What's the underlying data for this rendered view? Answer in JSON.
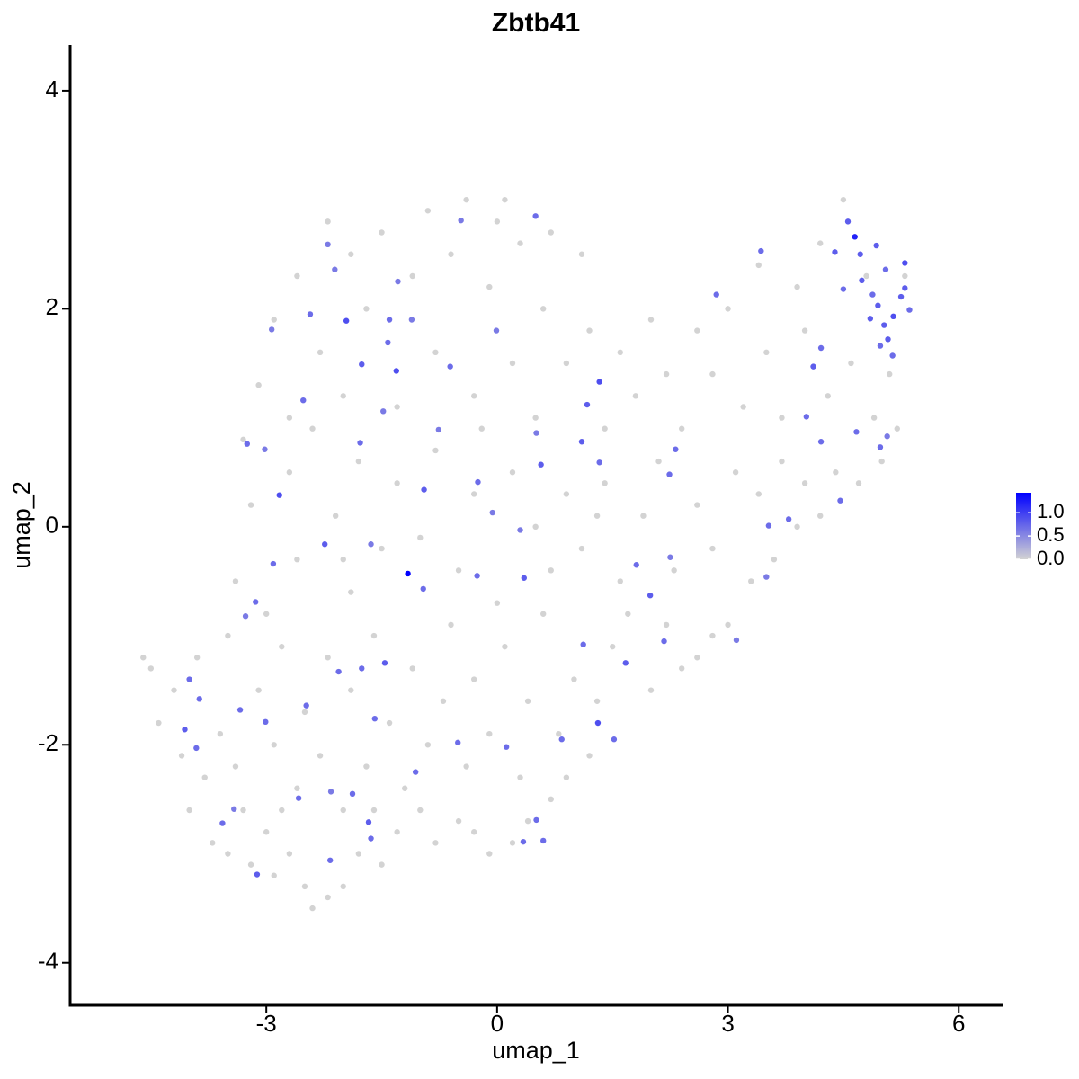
{
  "chart_data": {
    "type": "scatter",
    "title": "Zbtb41",
    "x_label": "umap_1",
    "y_label": "umap_2",
    "xlim": [
      -5.55,
      6.57
    ],
    "ylim": [
      -4.39,
      4.42
    ],
    "xticks": [
      -3,
      0,
      3,
      6
    ],
    "yticks": [
      -4,
      -2,
      0,
      2,
      4
    ],
    "color_low": "#d3d3d3",
    "color_high": "#0000ff",
    "colorbar": {
      "lim": [
        0,
        1.43
      ],
      "ticks": [
        {
          "value": 0,
          "label": "0.0"
        },
        0.5,
        {
          "value": 1,
          "label": "1.0"
        }
      ]
    },
    "x": [
      -4.6,
      -4.5,
      -4.4,
      -4.1,
      -4.0,
      -3.8,
      -3.7,
      -3.5,
      -3.3,
      -3.2,
      -3.0,
      -2.9,
      -2.7,
      -2.5,
      -2.4,
      -2.2,
      -2.0,
      -1.8,
      -1.5,
      -1.3,
      -1.0,
      -0.8,
      -0.5,
      -0.3,
      -0.1,
      0.2,
      0.4,
      0.7,
      0.9,
      1.2,
      -4.2,
      -3.9,
      -3.6,
      -3.4,
      -3.1,
      -2.9,
      -2.8,
      -2.6,
      -2.5,
      -2.3,
      -2.2,
      -2.0,
      -1.9,
      -1.7,
      -1.6,
      -1.4,
      -1.2,
      -1.1,
      -0.9,
      -0.7,
      -0.6,
      -0.4,
      -0.3,
      -0.1,
      0.1,
      0.3,
      0.4,
      0.6,
      0.8,
      1.0,
      1.3,
      1.5,
      1.7,
      2.0,
      2.2,
      2.4,
      2.6,
      2.8,
      3.0,
      3.3,
      3.6,
      3.9,
      4.2,
      -3.4,
      -3.2,
      -3.0,
      -2.7,
      -2.6,
      -2.4,
      -2.1,
      -1.9,
      -1.8,
      -1.5,
      -1.3,
      -1.0,
      -0.8,
      -0.5,
      -0.3,
      0.0,
      0.2,
      0.5,
      0.7,
      0.9,
      1.1,
      1.4,
      1.6,
      1.9,
      2.1,
      2.3,
      2.6,
      2.8,
      3.1,
      3.4,
      3.7,
      4.0,
      4.4,
      4.7,
      5.0,
      5.2,
      -3.1,
      -2.9,
      -2.7,
      -2.6,
      -2.3,
      -2.2,
      -2.0,
      -1.9,
      -1.7,
      -1.5,
      -1.3,
      -1.1,
      -0.9,
      -0.8,
      -0.6,
      -0.4,
      -0.3,
      -0.1,
      0.1,
      0.2,
      0.3,
      0.5,
      0.6,
      0.7,
      0.9,
      1.1,
      1.2,
      1.4,
      1.6,
      1.8,
      2.0,
      2.2,
      2.4,
      2.6,
      2.8,
      3.0,
      3.2,
      3.4,
      3.5,
      3.7,
      3.9,
      4.0,
      4.2,
      4.3,
      4.5,
      4.6,
      4.8,
      4.9,
      5.1,
      5.3,
      -3.3,
      -3.5,
      -2.0,
      -0.2,
      1.3,
      0.0,
      -1.6,
      -2.8,
      -2.2,
      -2.11,
      -2.43,
      -1.96,
      -2.93,
      -1.76,
      -1.31,
      -1.29,
      -1.42,
      -1.11,
      -2.52,
      -3.25,
      -3.02,
      -2.83,
      -2.24,
      -2.91,
      -3.14,
      -3.27,
      -1.64,
      -0.96,
      -0.06,
      0.3,
      -0.25,
      -0.95,
      -1.78,
      -1.48,
      -0.76,
      -0.01,
      -0.61,
      0.51,
      0.57,
      1.17,
      1.33,
      1.1,
      1.33,
      2.24,
      2.32,
      1.81,
      1.99,
      2.25,
      0.35,
      -0.26,
      1.12,
      1.67,
      2.17,
      1.31,
      1.52,
      0.84,
      0.12,
      -0.51,
      -1.06,
      -1.59,
      -1.76,
      -1.46,
      -2.06,
      -2.48,
      -3.01,
      -3.34,
      -3.87,
      -4.0,
      -4.06,
      -3.91,
      -3.57,
      -3.42,
      -3.12,
      -2.58,
      -2.16,
      -1.88,
      -1.67,
      -1.64,
      -2.17,
      0.34,
      0.6,
      0.51,
      3.53,
      3.79,
      3.5,
      3.11,
      2.85,
      3.43,
      4.11,
      4.21,
      4.02,
      4.21,
      4.67,
      4.98,
      5.07,
      4.46,
      4.39,
      4.72,
      4.56,
      4.74,
      4.88,
      4.85,
      5.03,
      5.15,
      5.25,
      5.3,
      5.36,
      5.05,
      4.93,
      5.08,
      4.98,
      4.95,
      5.14,
      4.5,
      5.3,
      0.5,
      -0.47,
      -1.4,
      4.65,
      -1.16
    ],
    "y": [
      -1.2,
      -1.3,
      -1.8,
      -2.1,
      -2.6,
      -2.3,
      -2.9,
      -3.0,
      -2.6,
      -3.1,
      -2.8,
      -3.2,
      -3.0,
      -3.3,
      -3.5,
      -3.4,
      -3.3,
      -3.0,
      -3.1,
      -2.8,
      -2.6,
      -2.9,
      -2.7,
      -2.8,
      -3.0,
      -2.9,
      -2.7,
      -2.5,
      -2.3,
      -2.1,
      -1.5,
      -1.2,
      -1.9,
      -2.2,
      -1.5,
      -2.0,
      -1.1,
      -2.4,
      -1.7,
      -2.1,
      -1.2,
      -2.6,
      -1.5,
      -2.2,
      -1.0,
      -1.8,
      -2.4,
      -1.3,
      -2.0,
      -1.6,
      -0.9,
      -2.2,
      -1.4,
      -1.9,
      -1.1,
      -2.3,
      -1.6,
      -0.8,
      -1.9,
      -1.4,
      -1.6,
      -1.1,
      -0.8,
      -1.5,
      -0.9,
      -1.3,
      -1.2,
      -1.0,
      -0.9,
      -0.5,
      -0.3,
      0.0,
      0.1,
      -0.5,
      0.2,
      -0.8,
      0.5,
      -0.3,
      0.9,
      0.1,
      -0.6,
      0.6,
      -0.2,
      0.4,
      -0.1,
      0.7,
      -0.4,
      0.3,
      -0.7,
      0.5,
      0.0,
      -0.4,
      0.3,
      -0.2,
      0.4,
      -0.5,
      0.1,
      0.6,
      -0.4,
      0.2,
      -0.2,
      0.5,
      0.3,
      0.6,
      0.4,
      0.5,
      0.4,
      0.6,
      0.9,
      1.3,
      1.9,
      1.0,
      2.3,
      1.6,
      2.8,
      1.2,
      2.5,
      2.0,
      2.7,
      1.1,
      2.3,
      2.9,
      1.6,
      2.5,
      3.0,
      1.2,
      2.2,
      3.0,
      1.5,
      2.6,
      1.0,
      2.0,
      2.7,
      1.5,
      2.5,
      1.8,
      0.9,
      1.6,
      1.2,
      1.9,
      1.4,
      0.9,
      1.8,
      1.4,
      2.0,
      1.1,
      2.4,
      1.6,
      1.0,
      2.2,
      1.8,
      2.6,
      1.2,
      3.0,
      1.5,
      2.3,
      1.0,
      1.4,
      2.3,
      0.8,
      -1.0,
      -0.3,
      0.9,
      0.1,
      2.8,
      -2.6,
      -2.6,
      2.59,
      2.36,
      1.95,
      1.89,
      1.81,
      1.49,
      1.43,
      2.25,
      1.69,
      1.9,
      1.16,
      0.76,
      0.71,
      0.29,
      -0.16,
      -0.34,
      -0.69,
      -0.82,
      -0.16,
      -0.57,
      0.13,
      -0.03,
      0.41,
      0.34,
      0.77,
      1.06,
      0.89,
      1.8,
      1.47,
      0.86,
      0.57,
      1.12,
      1.33,
      0.78,
      0.59,
      0.48,
      0.71,
      -0.35,
      -0.63,
      -0.28,
      -0.47,
      -0.45,
      -1.08,
      -1.25,
      -1.05,
      -1.8,
      -1.95,
      -1.95,
      -2.02,
      -1.98,
      -2.25,
      -1.76,
      -1.3,
      -1.25,
      -1.33,
      -1.64,
      -1.79,
      -1.68,
      -1.58,
      -1.4,
      -1.86,
      -2.03,
      -2.72,
      -2.59,
      -3.19,
      -2.49,
      -2.43,
      -2.45,
      -2.71,
      -2.86,
      -3.06,
      -2.89,
      -2.88,
      -2.69,
      0.01,
      0.07,
      -0.46,
      -1.04,
      2.13,
      2.53,
      1.47,
      1.64,
      1.01,
      0.78,
      0.87,
      0.73,
      0.83,
      0.24,
      2.52,
      2.5,
      2.8,
      2.26,
      2.13,
      1.91,
      1.85,
      1.93,
      2.11,
      2.42,
      1.99,
      2.36,
      2.58,
      1.72,
      1.66,
      2.03,
      1.57,
      2.18,
      2.19,
      2.85,
      2.81,
      1.9,
      2.66,
      -0.43
    ],
    "values": [
      0,
      0,
      0,
      0,
      0,
      0,
      0,
      0,
      0,
      0,
      0,
      0,
      0,
      0,
      0,
      0,
      0,
      0,
      0,
      0,
      0,
      0,
      0,
      0,
      0,
      0,
      0,
      0,
      0,
      0,
      0,
      0,
      0,
      0,
      0,
      0,
      0,
      0,
      0,
      0,
      0,
      0,
      0,
      0,
      0,
      0,
      0,
      0,
      0,
      0,
      0,
      0,
      0,
      0,
      0,
      0,
      0,
      0,
      0,
      0,
      0,
      0,
      0,
      0,
      0,
      0,
      0,
      0,
      0,
      0,
      0,
      0,
      0,
      0,
      0,
      0,
      0,
      0,
      0,
      0,
      0,
      0,
      0,
      0,
      0,
      0,
      0,
      0,
      0,
      0,
      0,
      0,
      0,
      0,
      0,
      0,
      0,
      0,
      0,
      0,
      0,
      0,
      0,
      0,
      0,
      0,
      0,
      0,
      0,
      0,
      0,
      0,
      0,
      0,
      0,
      0,
      0,
      0,
      0,
      0,
      0,
      0,
      0,
      0,
      0,
      0,
      0,
      0,
      0,
      0,
      0,
      0,
      0,
      0,
      0,
      0,
      0,
      0,
      0,
      0,
      0,
      0,
      0,
      0,
      0,
      0,
      0,
      0,
      0,
      0,
      0,
      0,
      0,
      0,
      0,
      0,
      0,
      0,
      0,
      0,
      0,
      0,
      0,
      0,
      0,
      0,
      0,
      0.6,
      0.6,
      0.7,
      0.9,
      0.6,
      0.8,
      0.9,
      0.6,
      0.7,
      0.6,
      0.7,
      0.7,
      0.6,
      0.9,
      0.8,
      0.7,
      0.7,
      0.6,
      0.6,
      0.7,
      0.6,
      0.6,
      0.7,
      0.8,
      0.7,
      0.6,
      0.6,
      0.6,
      0.7,
      0.6,
      0.8,
      0.8,
      0.9,
      0.8,
      0.7,
      0.7,
      0.7,
      0.7,
      0.8,
      0.6,
      0.8,
      0.7,
      0.7,
      0.8,
      0.7,
      0.9,
      0.7,
      0.7,
      0.7,
      0.7,
      0.7,
      0.7,
      0.7,
      0.8,
      0.7,
      0.7,
      0.7,
      0.7,
      0.7,
      0.7,
      0.8,
      0.7,
      0.7,
      0.6,
      0.8,
      0.7,
      0.6,
      0.7,
      0.8,
      0.7,
      0.7,
      0.7,
      0.7,
      0.7,
      0.7,
      0.7,
      0.6,
      0.6,
      0.7,
      0.7,
      0.8,
      0.7,
      0.7,
      0.7,
      0.7,
      0.7,
      0.6,
      0.7,
      0.8,
      0.8,
      0.8,
      0.8,
      0.7,
      0.8,
      0.8,
      0.9,
      0.8,
      0.9,
      0.7,
      0.7,
      0.8,
      0.8,
      0.7,
      0.8,
      0.7,
      0.7,
      0.8,
      0.7,
      0.6,
      0.7,
      1.2,
      1.43
    ]
  }
}
